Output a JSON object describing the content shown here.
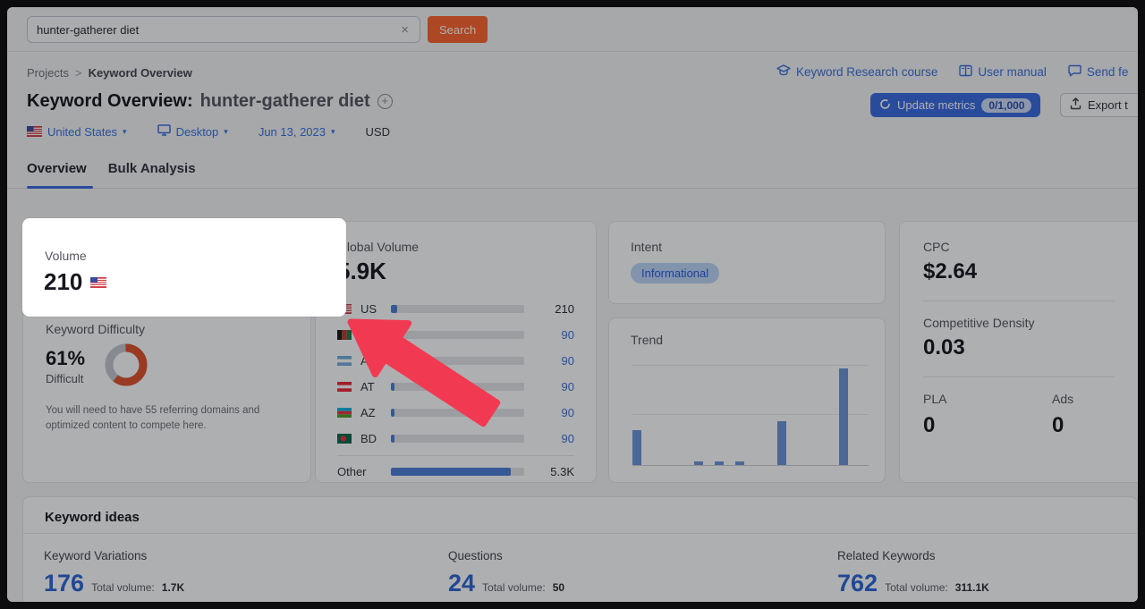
{
  "search": {
    "value": "hunter-gatherer diet",
    "clear_icon": "×",
    "button_label": "Search"
  },
  "breadcrumb": {
    "parent": "Projects",
    "separator": ">",
    "current": "Keyword Overview"
  },
  "header": {
    "title_prefix": "Keyword Overview:",
    "title_keyword": "hunter-gatherer diet",
    "links": [
      {
        "label": "Keyword Research course",
        "icon": "graduation-cap-icon"
      },
      {
        "label": "User manual",
        "icon": "book-icon"
      },
      {
        "label": "Send fe",
        "icon": "chat-icon"
      }
    ],
    "update_metrics": {
      "label": "Update metrics",
      "badge": "0/1,000"
    },
    "export_label": "Export t"
  },
  "filters": {
    "country": "United States",
    "device": "Desktop",
    "date": "Jun 13, 2023",
    "currency": "USD",
    "chevron": "▾"
  },
  "tabs": {
    "overview": "Overview",
    "bulk": "Bulk Analysis"
  },
  "cards": {
    "volume": {
      "label": "Volume",
      "value": "210"
    },
    "keyword_difficulty": {
      "label": "Keyword Difficulty",
      "value": "61%",
      "level": "Difficult",
      "description": "You will need to have 55 referring domains and optimized content to compete here.",
      "percent": 61
    },
    "global_volume": {
      "label": "Global Volume",
      "value": "5.9K",
      "rows": [
        {
          "code": "US",
          "value": "210",
          "fill": 0.05,
          "link": false
        },
        {
          "code": "AF",
          "value": "90",
          "fill": 0.025,
          "link": true
        },
        {
          "code": "AR",
          "value": "90",
          "fill": 0.025,
          "link": true
        },
        {
          "code": "AT",
          "value": "90",
          "fill": 0.025,
          "link": true
        },
        {
          "code": "AZ",
          "value": "90",
          "fill": 0.025,
          "link": true
        },
        {
          "code": "BD",
          "value": "90",
          "fill": 0.025,
          "link": true
        },
        {
          "code": "Other",
          "value": "5.3K",
          "fill": 0.9,
          "link": false
        }
      ]
    },
    "intent": {
      "label": "Intent",
      "badge": "Informational"
    },
    "trend": {
      "label": "Trend"
    },
    "cpc": {
      "label": "CPC",
      "value": "$2.64"
    },
    "competitive_density": {
      "label": "Competitive Density",
      "value": "0.03"
    },
    "pla": {
      "label": "PLA",
      "value": "0"
    },
    "ads": {
      "label": "Ads",
      "value": "0"
    }
  },
  "keyword_ideas": {
    "title": "Keyword ideas",
    "sections": [
      {
        "label": "Keyword Variations",
        "count": "176",
        "total_label": "Total volume:",
        "total": "1.7K"
      },
      {
        "label": "Questions",
        "count": "24",
        "total_label": "Total volume:",
        "total": "50"
      },
      {
        "label": "Related Keywords",
        "count": "762",
        "total_label": "Total volume:",
        "total": "311.1K"
      }
    ]
  },
  "chart_data": {
    "type": "bar",
    "title": "Trend",
    "x": [
      "m1",
      "m2",
      "m3",
      "m4",
      "m5",
      "m6",
      "m7",
      "m8",
      "m9",
      "m10",
      "m11",
      "m12"
    ],
    "values": [
      36,
      0,
      0,
      4,
      4,
      4,
      0,
      45,
      0,
      0,
      100,
      0
    ],
    "ylim": [
      0,
      100
    ],
    "grid": true,
    "bar_color": "#6d94d8"
  },
  "colors": {
    "accent_orange": "#ff642d",
    "link_blue": "#3c6fdd",
    "button_blue": "#3a6be0",
    "donut_orange": "#e0512e",
    "donut_track": "#c4c7cf",
    "intent_badge_bg": "#bcd7fa",
    "arrow_red": "#f13a52"
  }
}
